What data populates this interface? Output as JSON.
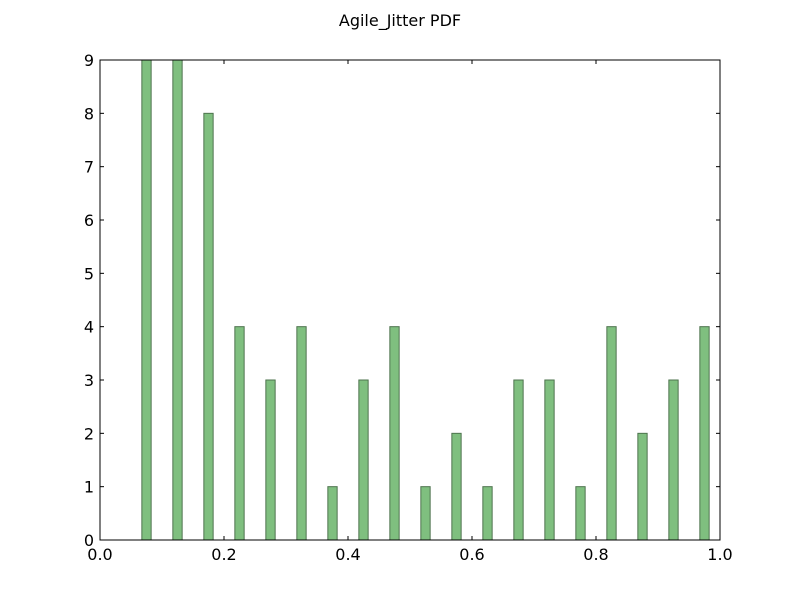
{
  "chart_data": {
    "type": "bar",
    "title": "Agile_Jitter PDF",
    "xlabel": "",
    "ylabel": "",
    "xlim": [
      0.0,
      1.0
    ],
    "ylim": [
      0,
      9
    ],
    "bar_width": 0.015,
    "bar_color": "#7fbf7f",
    "bar_edge_color": "#4d734d",
    "x": [
      0.075,
      0.125,
      0.175,
      0.225,
      0.275,
      0.325,
      0.375,
      0.425,
      0.475,
      0.525,
      0.575,
      0.625,
      0.675,
      0.725,
      0.775,
      0.825,
      0.875,
      0.925,
      0.975
    ],
    "values": [
      9,
      9,
      8,
      4,
      3,
      4,
      1,
      3,
      4,
      1,
      2,
      1,
      3,
      3,
      1,
      4,
      2,
      3,
      4
    ],
    "x_ticks": [
      0.0,
      0.2,
      0.4,
      0.6,
      0.8,
      1.0
    ],
    "x_tick_labels": [
      "0.0",
      "0.2",
      "0.4",
      "0.6",
      "0.8",
      "1.0"
    ],
    "y_ticks": [
      0,
      1,
      2,
      3,
      4,
      5,
      6,
      7,
      8,
      9
    ],
    "y_tick_labels": [
      "0",
      "1",
      "2",
      "3",
      "4",
      "5",
      "6",
      "7",
      "8",
      "9"
    ],
    "grid": false
  }
}
